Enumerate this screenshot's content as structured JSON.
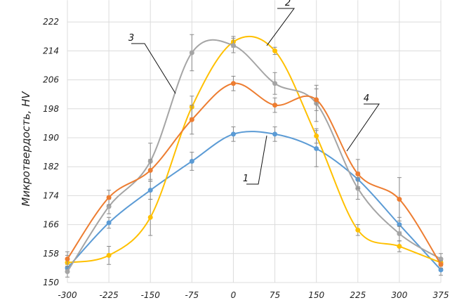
{
  "chart_data": {
    "type": "line",
    "title": "",
    "xlabel": "",
    "ylabel": "Микротвердость, HV",
    "x": [
      -300,
      -225,
      -150,
      -75,
      0,
      75,
      150,
      225,
      300,
      375
    ],
    "x_ticks": [
      "-300",
      "-225",
      "-150",
      "-75",
      "0",
      "75",
      "150",
      "225",
      "300",
      "375"
    ],
    "y_ticks": [
      "150",
      "158",
      "166",
      "174",
      "182",
      "190",
      "198",
      "206",
      "214",
      "222"
    ],
    "xlim": [
      -300,
      375
    ],
    "ylim": [
      150,
      228
    ],
    "grid": true,
    "series": [
      {
        "name": "1",
        "color": "#5b9bd5",
        "values": [
          154,
          166.5,
          175.5,
          183.5,
          191,
          191,
          187,
          178.5,
          166,
          153.5
        ],
        "errors": [
          1,
          1.5,
          2.5,
          2.5,
          2,
          2,
          5,
          2,
          2,
          1.5
        ]
      },
      {
        "name": "2",
        "color": "#ffc000",
        "values": [
          155.5,
          157.5,
          168,
          198.5,
          216.5,
          214,
          190.5,
          164.5,
          160,
          155.5
        ],
        "errors": [
          2,
          2.5,
          5,
          3,
          1.5,
          1,
          2,
          1.5,
          1.5,
          1
        ]
      },
      {
        "name": "3",
        "color": "#a5a5a5",
        "values": [
          153,
          171,
          183.5,
          213.5,
          215.5,
          205,
          199.5,
          176,
          163.5,
          156.5
        ],
        "errors": [
          1.5,
          2,
          5,
          5,
          2,
          3,
          5,
          3,
          2,
          1.5
        ]
      },
      {
        "name": "4",
        "color": "#ed7d31",
        "values": [
          156.5,
          173.5,
          181,
          195,
          205,
          199,
          200.5,
          180,
          173,
          155
        ],
        "errors": [
          2,
          2,
          3,
          4,
          2,
          2,
          3,
          4,
          6,
          1
        ]
      }
    ]
  }
}
